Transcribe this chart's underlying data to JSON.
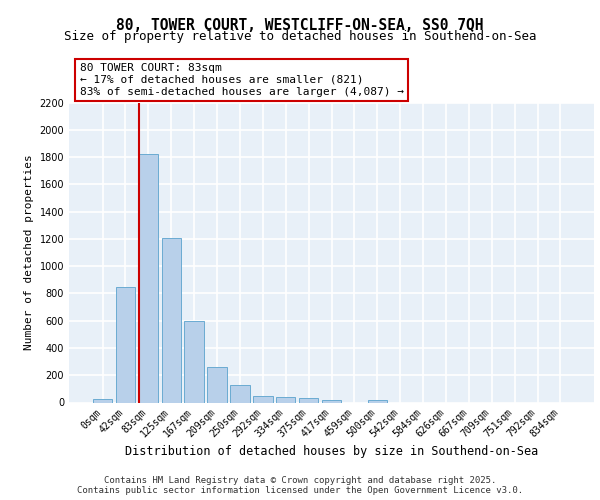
{
  "title1": "80, TOWER COURT, WESTCLIFF-ON-SEA, SS0 7QH",
  "title2": "Size of property relative to detached houses in Southend-on-Sea",
  "xlabel": "Distribution of detached houses by size in Southend-on-Sea",
  "ylabel": "Number of detached properties",
  "bar_labels": [
    "0sqm",
    "42sqm",
    "83sqm",
    "125sqm",
    "167sqm",
    "209sqm",
    "250sqm",
    "292sqm",
    "334sqm",
    "375sqm",
    "417sqm",
    "459sqm",
    "500sqm",
    "542sqm",
    "584sqm",
    "626sqm",
    "667sqm",
    "709sqm",
    "751sqm",
    "792sqm",
    "834sqm"
  ],
  "bar_values": [
    25,
    845,
    1820,
    1210,
    595,
    260,
    130,
    50,
    40,
    30,
    20,
    0,
    20,
    0,
    0,
    0,
    0,
    0,
    0,
    0,
    0
  ],
  "bar_color": "#b8d0ea",
  "bar_edge_color": "#6aabd2",
  "background_color": "#e8f0f8",
  "grid_color": "#ffffff",
  "vline_bar_index": 2,
  "vline_color": "#cc0000",
  "annotation_text": "80 TOWER COURT: 83sqm\n← 17% of detached houses are smaller (821)\n83% of semi-detached houses are larger (4,087) →",
  "annotation_box_edgecolor": "#cc0000",
  "ylim": [
    0,
    2200
  ],
  "yticks": [
    0,
    200,
    400,
    600,
    800,
    1000,
    1200,
    1400,
    1600,
    1800,
    2000,
    2200
  ],
  "footer": "Contains HM Land Registry data © Crown copyright and database right 2025.\nContains public sector information licensed under the Open Government Licence v3.0.",
  "title1_fontsize": 10.5,
  "title2_fontsize": 9,
  "xlabel_fontsize": 8.5,
  "ylabel_fontsize": 8,
  "tick_fontsize": 7,
  "footer_fontsize": 6.5,
  "annot_fontsize": 8
}
